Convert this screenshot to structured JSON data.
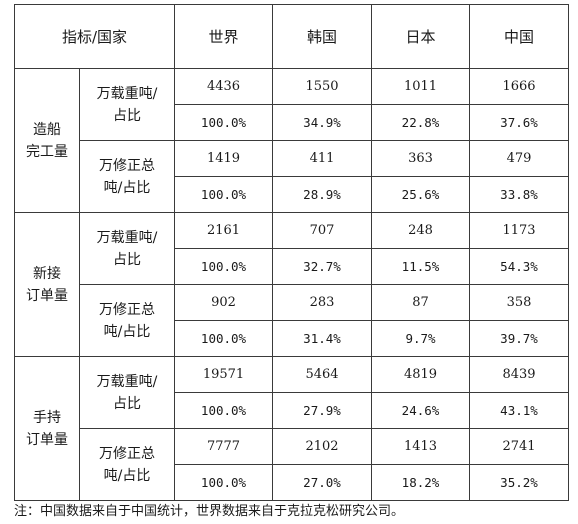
{
  "header": {
    "corner": "指标/国家",
    "countries": [
      "世界",
      "韩国",
      "日本",
      "中国"
    ]
  },
  "groups": [
    {
      "label_lines": [
        "造船",
        "完工量"
      ],
      "units": [
        {
          "label_lines": [
            "万载重吨/",
            "占比"
          ],
          "values": [
            "4436",
            "1550",
            "1011",
            "1666"
          ],
          "shares": [
            "100.0%",
            "34.9%",
            "22.8%",
            "37.6%"
          ]
        },
        {
          "label_lines": [
            "万修正总",
            "吨/占比"
          ],
          "values": [
            "1419",
            "411",
            "363",
            "479"
          ],
          "shares": [
            "100.0%",
            "28.9%",
            "25.6%",
            "33.8%"
          ]
        }
      ]
    },
    {
      "label_lines": [
        "新接",
        "订单量"
      ],
      "units": [
        {
          "label_lines": [
            "万载重吨/",
            "占比"
          ],
          "values": [
            "2161",
            "707",
            "248",
            "1173"
          ],
          "shares": [
            "100.0%",
            "32.7%",
            "11.5%",
            "54.3%"
          ]
        },
        {
          "label_lines": [
            "万修正总",
            "吨/占比"
          ],
          "values": [
            "902",
            "283",
            "87",
            "358"
          ],
          "shares": [
            "100.0%",
            "31.4%",
            "9.7%",
            "39.7%"
          ]
        }
      ]
    },
    {
      "label_lines": [
        "手持",
        "订单量"
      ],
      "units": [
        {
          "label_lines": [
            "万载重吨/",
            "占比"
          ],
          "values": [
            "19571",
            "5464",
            "4819",
            "8439"
          ],
          "shares": [
            "100.0%",
            "27.9%",
            "24.6%",
            "43.1%"
          ]
        },
        {
          "label_lines": [
            "万修正总",
            "吨/占比"
          ],
          "values": [
            "7777",
            "2102",
            "1413",
            "2741"
          ],
          "shares": [
            "100.0%",
            "27.0%",
            "18.2%",
            "35.2%"
          ]
        }
      ]
    }
  ],
  "note": "注：中国数据来自于中国统计，世界数据来自于克拉克松研究公司。"
}
